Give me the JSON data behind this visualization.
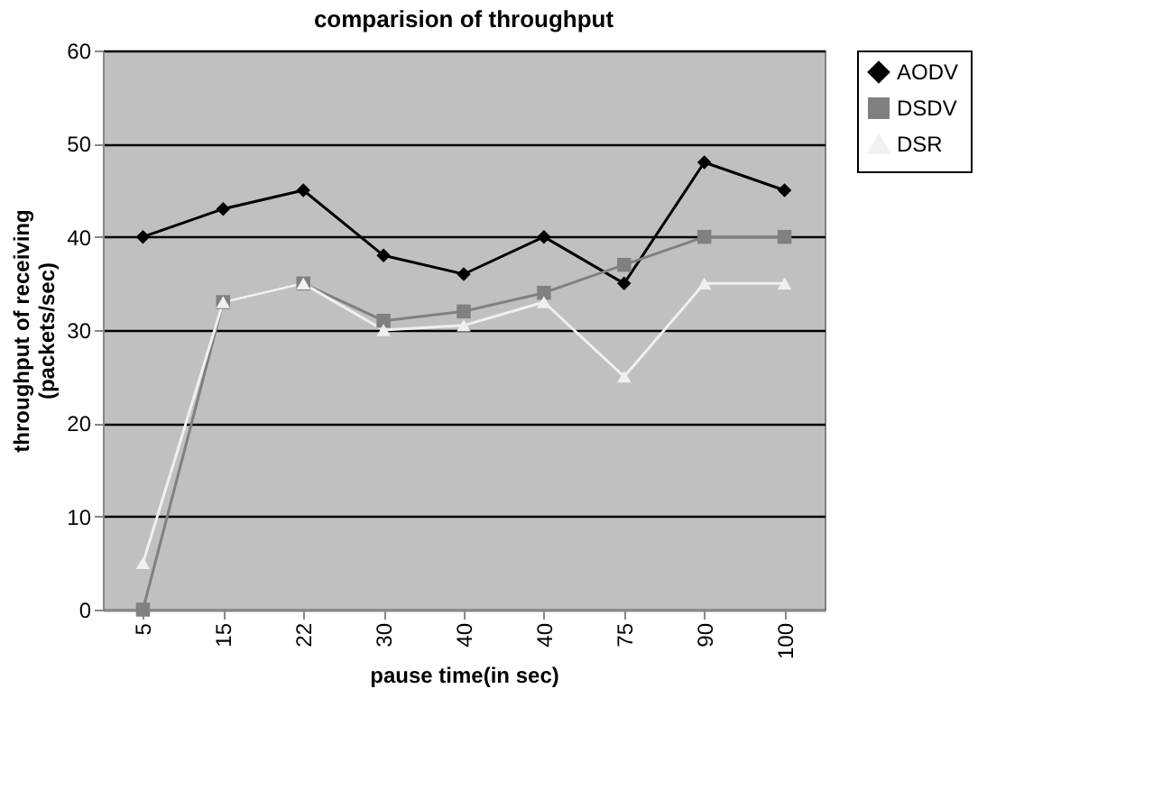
{
  "chart_data": {
    "type": "line",
    "title": "comparision of throughput",
    "xlabel": "pause time(in sec)",
    "ylabel": "throughput of receiving (packets/sec)",
    "categories": [
      "5",
      "15",
      "22",
      "30",
      "40",
      "40",
      "75",
      "90",
      "100"
    ],
    "series": [
      {
        "name": "AODV",
        "color": "#000000",
        "marker": "diamond",
        "values": [
          40,
          43,
          45,
          38,
          36,
          40,
          35,
          48,
          45
        ]
      },
      {
        "name": "DSDV",
        "color": "#808080",
        "marker": "square",
        "values": [
          0,
          33,
          35,
          31,
          32,
          34,
          37,
          40,
          40
        ]
      },
      {
        "name": "DSR",
        "color": "#f0f0f0",
        "marker": "triangle",
        "values": [
          5,
          33,
          35,
          30,
          30.5,
          33,
          25,
          35,
          35
        ]
      }
    ],
    "ylim": [
      0,
      60
    ],
    "yticks": [
      0,
      10,
      20,
      30,
      40,
      50,
      60
    ],
    "grid": "y",
    "legend": "right"
  }
}
